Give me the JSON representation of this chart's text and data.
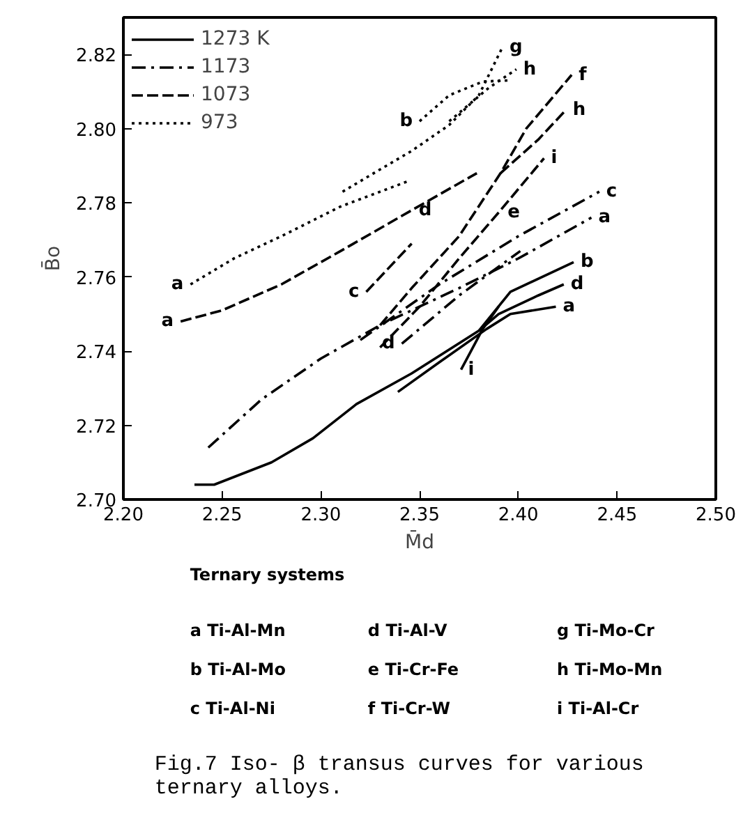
{
  "chart_data": {
    "type": "line",
    "xlabel": "M̄d",
    "ylabel": "B̄o",
    "xlim": [
      2.2,
      2.5
    ],
    "ylim": [
      2.7,
      2.83
    ],
    "xticks": [
      {
        "value": 2.2,
        "label": "2.20"
      },
      {
        "value": 2.25,
        "label": "2.25"
      },
      {
        "value": 2.3,
        "label": "2.30"
      },
      {
        "value": 2.35,
        "label": "2.35"
      },
      {
        "value": 2.4,
        "label": "2.40"
      },
      {
        "value": 2.45,
        "label": "2.45"
      },
      {
        "value": 2.5,
        "label": "2.50"
      }
    ],
    "yticks": [
      {
        "value": 2.7,
        "label": "2.70"
      },
      {
        "value": 2.72,
        "label": "2.72"
      },
      {
        "value": 2.74,
        "label": "2.74"
      },
      {
        "value": 2.76,
        "label": "2.76"
      },
      {
        "value": 2.78,
        "label": "2.78"
      },
      {
        "value": 2.8,
        "label": "2.80"
      },
      {
        "value": 2.82,
        "label": "2.82"
      }
    ],
    "grid": false,
    "legend": "top left",
    "marker": "none",
    "series": [
      {
        "name": "1273 K",
        "color": "#000000",
        "line_style": "solid",
        "x": [
          2.236,
          2.246,
          2.275,
          2.296,
          2.318,
          2.346,
          2.38,
          2.396,
          2.428
        ],
        "values": [
          2.704,
          2.704,
          2.71,
          2.7165,
          2.7257,
          2.734,
          2.7455,
          2.756,
          2.764
        ]
      },
      {
        "color": "#000000",
        "line_style": "solid",
        "x": [
          2.38,
          2.39,
          2.41,
          2.423
        ],
        "values": [
          2.7455,
          2.75,
          2.755,
          2.758
        ]
      },
      {
        "color": "#000000",
        "line_style": "solid",
        "x": [
          2.339,
          2.36,
          2.384,
          2.396,
          2.419
        ],
        "values": [
          2.729,
          2.737,
          2.746,
          2.75,
          2.752
        ]
      },
      {
        "color": "#000000",
        "line_style": "solid",
        "x": [
          2.39,
          2.382,
          2.371
        ],
        "values": [
          2.752,
          2.746,
          2.735
        ]
      },
      {
        "name": "1173",
        "color": "#000000",
        "line_style": "dashdot",
        "x": [
          2.243,
          2.27,
          2.3,
          2.33,
          2.37,
          2.4,
          2.437
        ],
        "values": [
          2.714,
          2.727,
          2.738,
          2.747,
          2.757,
          2.765,
          2.776
        ]
      },
      {
        "color": "#000000",
        "line_style": "dashdot",
        "x": [
          2.32,
          2.36,
          2.4,
          2.441
        ],
        "values": [
          2.743,
          2.758,
          2.771,
          2.783
        ]
      },
      {
        "color": "#000000",
        "line_style": "dashdot",
        "x": [
          2.341,
          2.37,
          2.401
        ],
        "values": [
          2.742,
          2.755,
          2.767
        ]
      },
      {
        "name": "1073",
        "color": "#000000",
        "line_style": "dashed",
        "x": [
          2.229,
          2.25,
          2.28,
          2.31,
          2.346,
          2.379
        ],
        "values": [
          2.748,
          2.751,
          2.758,
          2.767,
          2.778,
          2.788
        ]
      },
      {
        "color": "#000000",
        "line_style": "dashed",
        "x": [
          2.33,
          2.346,
          2.37,
          2.391,
          2.404,
          2.427
        ],
        "values": [
          2.747,
          2.757,
          2.771,
          2.788,
          2.8,
          2.8145
        ]
      },
      {
        "color": "#000000",
        "line_style": "dashed",
        "x": [
          2.33,
          2.35,
          2.37,
          2.391,
          2.413
        ],
        "values": [
          2.741,
          2.752,
          2.765,
          2.778,
          2.792
        ]
      },
      {
        "color": "#000000",
        "line_style": "dashed",
        "x": [
          2.391,
          2.41,
          2.424
        ],
        "values": [
          2.788,
          2.797,
          2.805
        ]
      },
      {
        "color": "#000000",
        "line_style": "dashed",
        "x": [
          2.323,
          2.346
        ],
        "values": [
          2.756,
          2.769
        ]
      },
      {
        "name": "973",
        "color": "#000000",
        "line_style": "dotted",
        "x": [
          2.234,
          2.256,
          2.28,
          2.31,
          2.345
        ],
        "values": [
          2.758,
          2.765,
          2.771,
          2.779,
          2.786
        ]
      },
      {
        "color": "#000000",
        "line_style": "dotted",
        "x": [
          2.311,
          2.33,
          2.346,
          2.365,
          2.38,
          2.392
        ],
        "values": [
          2.783,
          2.789,
          2.794,
          2.801,
          2.809,
          2.822
        ]
      },
      {
        "color": "#000000",
        "line_style": "dotted",
        "x": [
          2.365,
          2.385,
          2.399
        ],
        "values": [
          2.802,
          2.811,
          2.816
        ]
      },
      {
        "color": "#000000",
        "line_style": "dotted",
        "x": [
          2.35,
          2.365,
          2.382,
          2.395
        ],
        "values": [
          2.802,
          2.809,
          2.8127,
          2.813
        ]
      }
    ],
    "annotations": [
      {
        "text": "a",
        "x": 2.234,
        "y": 2.758
      },
      {
        "text": "a",
        "x": 2.229,
        "y": 2.748
      },
      {
        "text": "c",
        "x": 2.323,
        "y": 2.756
      },
      {
        "text": "d",
        "x": 2.341,
        "y": 2.742
      },
      {
        "text": "b",
        "x": 2.35,
        "y": 2.802
      },
      {
        "text": "g",
        "x": 2.392,
        "y": 2.822
      },
      {
        "text": "h",
        "x": 2.399,
        "y": 2.816
      },
      {
        "text": "f",
        "x": 2.427,
        "y": 2.8145
      },
      {
        "text": "h",
        "x": 2.424,
        "y": 2.805
      },
      {
        "text": "i",
        "x": 2.413,
        "y": 2.792
      },
      {
        "text": "d",
        "x": 2.346,
        "y": 2.778
      },
      {
        "text": "e",
        "x": 2.391,
        "y": 2.778
      },
      {
        "text": "c",
        "x": 2.441,
        "y": 2.783
      },
      {
        "text": "a",
        "x": 2.437,
        "y": 2.776
      },
      {
        "text": "b",
        "x": 2.428,
        "y": 2.764
      },
      {
        "text": "d",
        "x": 2.423,
        "y": 2.758
      },
      {
        "text": "a",
        "x": 2.419,
        "y": 2.752
      },
      {
        "text": "i",
        "x": 2.371,
        "y": 2.735
      },
      "Ternary systems",
      "a  Ti-Al-Mn",
      "b  Ti-Al-Mo",
      "c  Ti-Al-Ni",
      "d  Ti-Al-V",
      "e  Ti-Cr-Fe",
      "f  Ti-Cr-W",
      "g  Ti-Mo-Cr",
      "h  Ti-Mo-Mn",
      "i  Ti-Al-Cr",
      "Fig.7  Iso- β transus curves for various\n      ternary alloys."
    ]
  }
}
